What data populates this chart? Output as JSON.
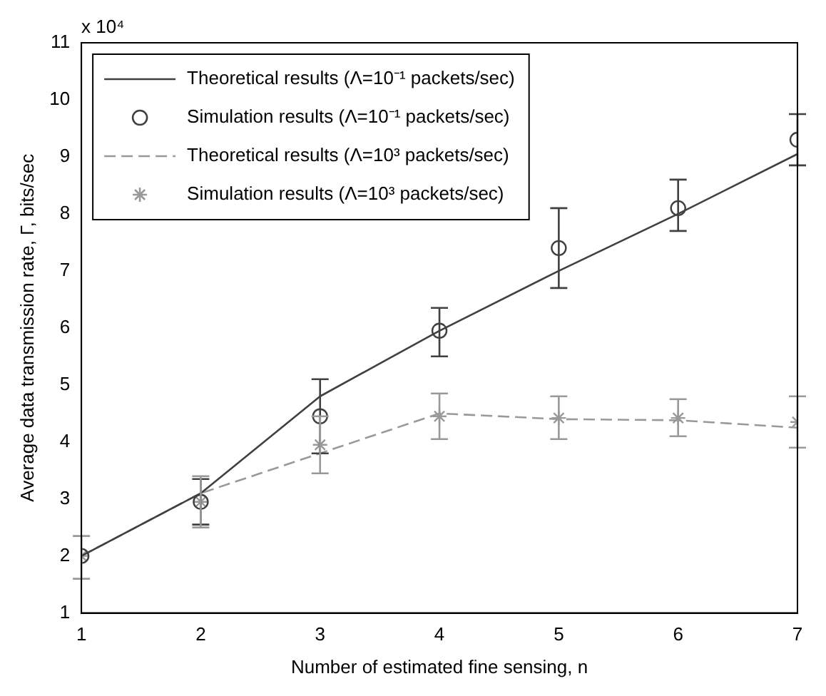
{
  "chart_data": {
    "type": "line",
    "xlabel": "Number of estimated fine sensing, n",
    "ylabel": "Average data transmission rate, Γ, bits/sec",
    "annotations": [
      "x 10⁴"
    ],
    "x": [
      1,
      2,
      3,
      4,
      5,
      6,
      7
    ],
    "xlim": [
      1,
      7
    ],
    "xticks": [
      1,
      2,
      3,
      4,
      5,
      6,
      7
    ],
    "ylim": [
      1,
      11
    ],
    "yticks": [
      1,
      2,
      3,
      4,
      5,
      6,
      7,
      8,
      9,
      10,
      11
    ],
    "grid": false,
    "legend": "top left",
    "series": [
      {
        "name": "Theoretical results (Λ=10⁻¹ packets/sec)",
        "type": "line",
        "color": "#404040",
        "marker": "none",
        "line_style": "solid",
        "values": [
          2.0,
          3.1,
          4.8,
          5.95,
          7.0,
          8.0,
          9.05
        ]
      },
      {
        "name": "Simulation results (Λ=10⁻¹ packets/sec)",
        "type": "scatter",
        "color": "#404040",
        "marker": "circle",
        "values": [
          2.0,
          2.95,
          4.45,
          5.95,
          7.4,
          8.1,
          9.3
        ],
        "errors": [
          null,
          [
            2.55,
            3.35
          ],
          [
            3.8,
            5.1
          ],
          [
            5.5,
            6.35
          ],
          [
            6.7,
            8.1
          ],
          [
            7.7,
            8.6
          ],
          [
            8.85,
            9.75
          ]
        ]
      },
      {
        "name": "Theoretical results (Λ=10³ packets/sec)",
        "type": "line",
        "color": "#999999",
        "marker": "none",
        "line_style": "dashed",
        "values": [
          2.0,
          3.1,
          3.8,
          4.5,
          4.4,
          4.38,
          4.25
        ]
      },
      {
        "name": "Simulation results (Λ=10³ packets/sec)",
        "type": "scatter",
        "color": "#999999",
        "marker": "cross",
        "values": [
          2.0,
          2.95,
          3.95,
          4.45,
          4.42,
          4.42,
          4.35
        ],
        "errors": [
          [
            1.6,
            2.35
          ],
          [
            2.5,
            3.4
          ],
          [
            3.45,
            4.45
          ],
          [
            4.05,
            4.85
          ],
          [
            4.05,
            4.8
          ],
          [
            4.1,
            4.75
          ],
          [
            3.9,
            4.8
          ]
        ]
      }
    ]
  }
}
